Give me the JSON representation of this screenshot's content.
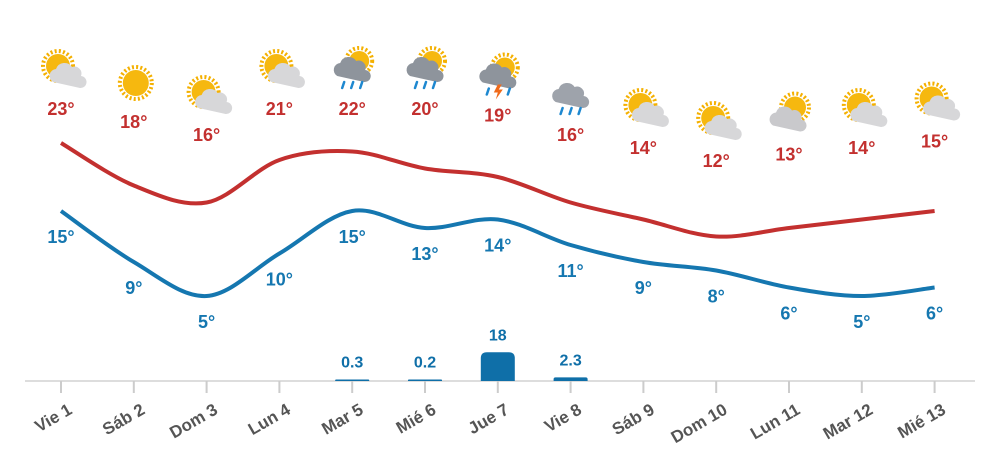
{
  "chart_data": {
    "type": "line",
    "categories": [
      "Vie 1",
      "Sáb 2",
      "Dom 3",
      "Lun 4",
      "Mar 5",
      "Mié 6",
      "Jue 7",
      "Vie 8",
      "Sáb 9",
      "Dom 10",
      "Lun 11",
      "Mar 12",
      "Mié 13"
    ],
    "series": [
      {
        "color": "#c3302f",
        "values": [
          23,
          18,
          16,
          21,
          22,
          20,
          19,
          16,
          14,
          12,
          13,
          14,
          15
        ],
        "value_labels": [
          "23°",
          "18°",
          "16°",
          "21°",
          "22°",
          "20°",
          "19°",
          "16°",
          "14°",
          "12°",
          "13°",
          "14°",
          "15°"
        ]
      },
      {
        "color": "#1577b0",
        "values": [
          15,
          9,
          5,
          10,
          15,
          13,
          14,
          11,
          9,
          8,
          6,
          5,
          6
        ],
        "value_labels": [
          "15°",
          "9°",
          "5°",
          "10°",
          "15°",
          "13°",
          "14°",
          "11°",
          "9°",
          "8°",
          "6°",
          "5°",
          "6°"
        ]
      },
      {
        "type": "bar",
        "color": "#0f6fa8",
        "values": [
          null,
          null,
          null,
          null,
          0.3,
          0.2,
          18,
          2.3,
          null,
          null,
          null,
          null,
          null
        ]
      }
    ]
  }
}
